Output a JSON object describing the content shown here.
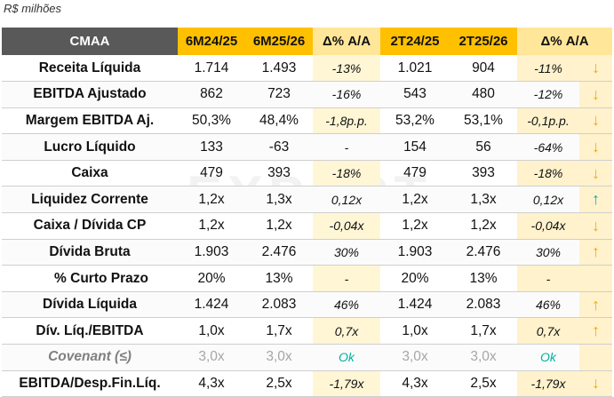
{
  "unit_label": "R$ milhões",
  "headers": {
    "label": "CMAA",
    "c1": "6M24/25",
    "c2": "6M25/26",
    "c3": "Δ% A/A",
    "c4": "2T24/25",
    "c5": "2T25/26",
    "c6": "Δ% A/A"
  },
  "rows": [
    {
      "label": "Receita Líquida",
      "c1": "1.714",
      "c2": "1.493",
      "c3": "-13%",
      "c4": "1.021",
      "c5": "904",
      "c6": "-11%",
      "arrow": "↓",
      "arrow_icon": "arrow-down-amber"
    },
    {
      "label": "EBITDA Ajustado",
      "c1": "862",
      "c2": "723",
      "c3": "-16%",
      "c4": "543",
      "c5": "480",
      "c6": "-12%",
      "arrow": "↓",
      "arrow_icon": "arrow-down-amber"
    },
    {
      "label": "Margem EBITDA Aj.",
      "c1": "50,3%",
      "c2": "48,4%",
      "c3": "-1,8p.p.",
      "c4": "53,2%",
      "c5": "53,1%",
      "c6": "-0,1p.p.",
      "arrow": "↓",
      "arrow_icon": "arrow-down-amber"
    },
    {
      "label": "Lucro Líquido",
      "c1": "133",
      "c2": "-63",
      "c3": "-",
      "c4": "154",
      "c5": "56",
      "c6": "-64%",
      "arrow": "↓",
      "arrow_icon": "arrow-down-amber"
    },
    {
      "label": "Caixa",
      "c1": "479",
      "c2": "393",
      "c3": "-18%",
      "c4": "479",
      "c5": "393",
      "c6": "-18%",
      "arrow": "↓",
      "arrow_icon": "arrow-down-amber"
    },
    {
      "label": "Liquidez Corrente",
      "c1": "1,2x",
      "c2": "1,3x",
      "c3": "0,12x",
      "c4": "1,2x",
      "c5": "1,3x",
      "c6": "0,12x",
      "arrow": "↑",
      "arrow_icon": "arrow-up-teal"
    },
    {
      "label": "Caixa / Dívida CP",
      "c1": "1,2x",
      "c2": "1,2x",
      "c3": "-0,04x",
      "c4": "1,2x",
      "c5": "1,2x",
      "c6": "-0,04x",
      "arrow": "↓",
      "arrow_icon": "arrow-down-amber"
    },
    {
      "label": "Dívida Bruta",
      "c1": "1.903",
      "c2": "2.476",
      "c3": "30%",
      "c4": "1.903",
      "c5": "2.476",
      "c6": "30%",
      "arrow": "↑",
      "arrow_icon": "arrow-up-amber"
    },
    {
      "label": "% Curto Prazo",
      "c1": "20%",
      "c2": "13%",
      "c3": "-",
      "c4": "20%",
      "c5": "13%",
      "c6": "-",
      "arrow": "",
      "arrow_icon": "",
      "style": "indent"
    },
    {
      "label": "Dívida Líquida",
      "c1": "1.424",
      "c2": "2.083",
      "c3": "46%",
      "c4": "1.424",
      "c5": "2.083",
      "c6": "46%",
      "arrow": "↑",
      "arrow_icon": "arrow-up-amber"
    },
    {
      "label": "Dív. Líq./EBITDA",
      "c1": "1,0x",
      "c2": "1,7x",
      "c3": "0,7x",
      "c4": "1,0x",
      "c5": "1,7x",
      "c6": "0,7x",
      "arrow": "↑",
      "arrow_icon": "arrow-up-amber"
    },
    {
      "label": "Covenant (≤)",
      "c1": "3,0x",
      "c2": "3,0x",
      "c3": "Ok",
      "c4": "3,0x",
      "c5": "3,0x",
      "c6": "Ok",
      "arrow": "",
      "arrow_icon": "",
      "style": "covenant"
    },
    {
      "label": "EBITDA/Desp.Fin.Líq.",
      "c1": "4,3x",
      "c2": "2,5x",
      "c3": "-1,79x",
      "c4": "4,3x",
      "c5": "2,5x",
      "c6": "-1,79x",
      "arrow": "↓",
      "arrow_icon": "arrow-down-amber"
    }
  ],
  "colors": {
    "header_dark": "#595959",
    "header_year": "#ffc000",
    "header_quarter": "#ffe699",
    "quarter_fill": "#fff2cc",
    "arrow_up_teal": "#00b0a0",
    "arrow_amber": "#f5a800",
    "covenant_text": "#a6a6a6",
    "ok_text": "#00b0a0"
  }
}
